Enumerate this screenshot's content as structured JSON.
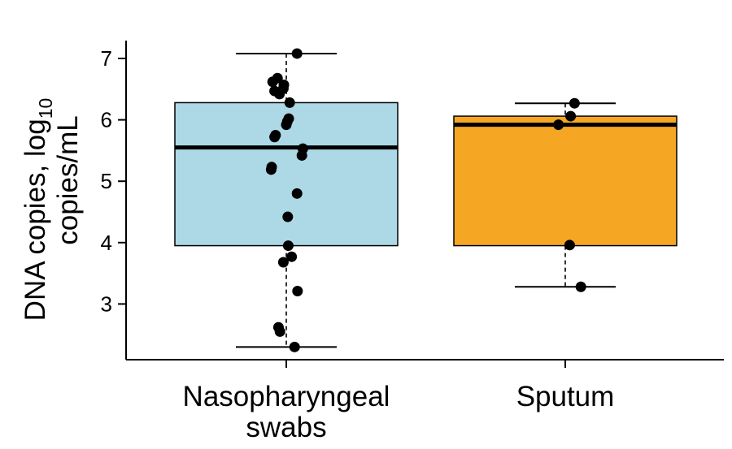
{
  "chart_data": {
    "type": "box",
    "title": "",
    "ylabel": {
      "line1_prefix": "DNA copies, log",
      "line1_subscript": "10",
      "line2": "copies/mL"
    },
    "ylim": [
      2.2,
      7.35
    ],
    "yticks": [
      3,
      4,
      5,
      6,
      7
    ],
    "ytick_labels": [
      "3",
      "4",
      "5",
      "6",
      "7"
    ],
    "grid": false,
    "legend": "none",
    "categories": [
      {
        "label_lines": [
          "Nasopharyngeal",
          "swabs"
        ],
        "color": "#add8e6",
        "whisker_low": 2.3,
        "q1": 3.95,
        "median": 5.55,
        "q3": 6.28,
        "whisker_high": 7.08,
        "points": [
          7.08,
          6.68,
          6.62,
          6.57,
          6.51,
          6.47,
          6.42,
          6.28,
          6.02,
          5.97,
          5.92,
          5.75,
          5.72,
          5.53,
          5.42,
          5.23,
          5.19,
          4.8,
          4.42,
          3.95,
          3.77,
          3.68,
          3.21,
          2.62,
          2.55,
          2.3
        ],
        "jitter": [
          0.22,
          -0.18,
          -0.28,
          -0.05,
          -0.06,
          -0.24,
          -0.14,
          0.07,
          0.05,
          0.02,
          0.0,
          -0.22,
          -0.24,
          0.34,
          0.32,
          -0.3,
          -0.31,
          0.22,
          0.03,
          0.04,
          0.11,
          -0.06,
          0.23,
          -0.16,
          -0.13,
          0.17
        ]
      },
      {
        "label_lines": [
          "Sputum"
        ],
        "color": "#f5a623",
        "whisker_low": 3.28,
        "q1": 3.95,
        "median": 5.92,
        "q3": 6.06,
        "whisker_high": 6.27,
        "points": [
          6.27,
          6.06,
          5.92,
          3.96,
          3.28
        ],
        "jitter": [
          0.19,
          0.11,
          -0.14,
          0.09,
          0.32
        ]
      }
    ]
  }
}
